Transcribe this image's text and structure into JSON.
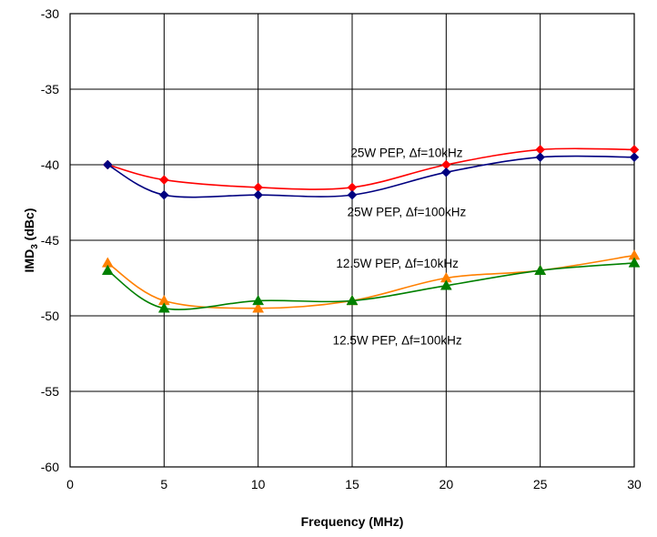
{
  "chart_data": {
    "type": "line",
    "title": "",
    "xlabel": "Frequency (MHz)",
    "ylabel": {
      "main": "IMD",
      "sub": "3",
      "rest": " (dBc)"
    },
    "xlim": [
      0,
      30
    ],
    "ylim": [
      -60,
      -30
    ],
    "x_ticks": [
      0,
      5,
      10,
      15,
      20,
      25,
      30
    ],
    "y_ticks": [
      -30,
      -35,
      -40,
      -45,
      -50,
      -55,
      -60
    ],
    "grid": true,
    "legend": "none",
    "series": [
      {
        "color": "#ff0000",
        "marker": "diamond",
        "points": [
          [
            2,
            -40
          ],
          [
            5,
            -41
          ],
          [
            10,
            -41.5
          ],
          [
            15,
            -41.5
          ],
          [
            20,
            -40
          ],
          [
            25,
            -39
          ],
          [
            30,
            -39
          ]
        ]
      },
      {
        "color": "#000080",
        "marker": "diamond",
        "points": [
          [
            2,
            -40
          ],
          [
            5,
            -42
          ],
          [
            10,
            -42
          ],
          [
            15,
            -42
          ],
          [
            20,
            -40.5
          ],
          [
            25,
            -39.5
          ],
          [
            30,
            -39.5
          ]
        ]
      },
      {
        "color": "#ff8000",
        "marker": "triangle",
        "points": [
          [
            2,
            -46.5
          ],
          [
            5,
            -49
          ],
          [
            10,
            -49.5
          ],
          [
            15,
            -49
          ],
          [
            20,
            -47.5
          ],
          [
            25,
            -47
          ],
          [
            30,
            -46
          ]
        ]
      },
      {
        "color": "#008000",
        "marker": "triangle",
        "points": [
          [
            2,
            -47
          ],
          [
            5,
            -49.5
          ],
          [
            10,
            -49
          ],
          [
            15,
            -49
          ],
          [
            20,
            -48
          ],
          [
            25,
            -47
          ],
          [
            30,
            -46.5
          ]
        ]
      }
    ],
    "annotations": [
      {
        "text": "25W PEP, Δf=10kHz",
        "x": 17.9,
        "y": -39.5
      },
      {
        "text": "25W PEP, Δf=100kHz",
        "x": 17.9,
        "y": -43.4
      },
      {
        "text": "12.5W PEP, Δf=10kHz",
        "x": 17.4,
        "y": -46.8
      },
      {
        "text": "12.5W PEP, Δf=100kHz",
        "x": 17.4,
        "y": -51.9
      }
    ]
  }
}
